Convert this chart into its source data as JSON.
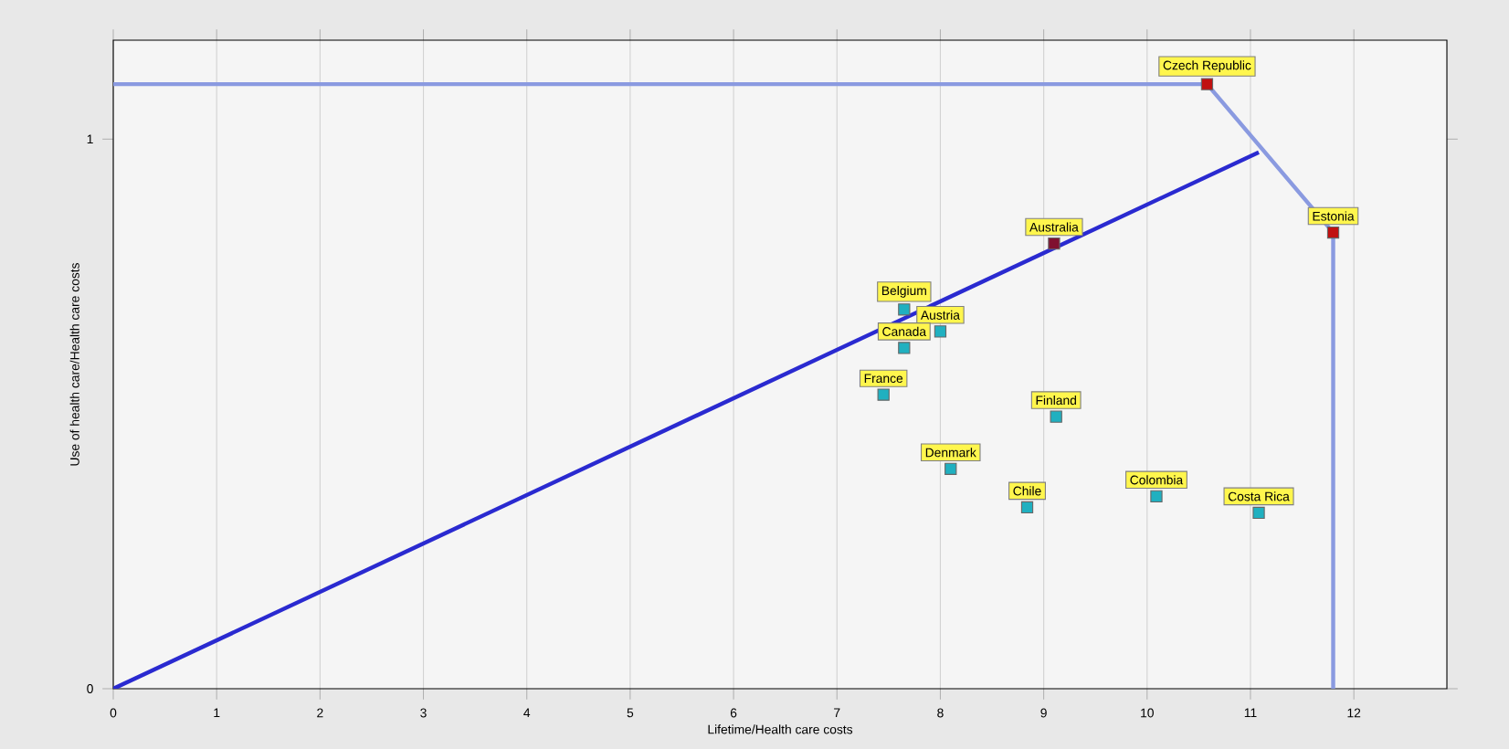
{
  "chart_data": {
    "type": "scatter",
    "xlabel": "Lifetime/Health care costs",
    "ylabel": "Use of health care/Health care costs",
    "xlim": [
      0,
      12.9
    ],
    "ylim": [
      0,
      1.18
    ],
    "xticks": [
      0,
      1,
      2,
      3,
      4,
      5,
      6,
      7,
      8,
      9,
      10,
      11,
      12
    ],
    "yticks": [
      0,
      1
    ],
    "grid": "x",
    "legend": false,
    "marker": "square",
    "series": [
      {
        "type": "line",
        "marker": "none",
        "color": "#8a9ae0",
        "x": [
          0,
          10.58,
          11.8,
          11.8
        ],
        "values": [
          1.1,
          1.1,
          0.83,
          0
        ]
      },
      {
        "type": "line",
        "marker": "none",
        "color": "#2a2ad0",
        "x": [
          0,
          11.08
        ],
        "values": [
          0,
          0.976
        ]
      },
      {
        "name": "Czech Republic",
        "color": "#c01010",
        "x": [
          10.58
        ],
        "values": [
          1.1
        ]
      },
      {
        "name": "Estonia",
        "color": "#c01010",
        "x": [
          11.8
        ],
        "values": [
          0.83
        ]
      },
      {
        "name": "Australia",
        "color": "#801030",
        "x": [
          9.1
        ],
        "values": [
          0.81
        ]
      },
      {
        "name": "Belgium",
        "color": "#20b0c0",
        "x": [
          7.65
        ],
        "values": [
          0.69
        ]
      },
      {
        "name": "Austria",
        "color": "#20b0c0",
        "x": [
          8.0
        ],
        "values": [
          0.65
        ]
      },
      {
        "name": "Canada",
        "color": "#20b0c0",
        "x": [
          7.65
        ],
        "values": [
          0.62
        ]
      },
      {
        "name": "France",
        "color": "#20b0c0",
        "x": [
          7.45
        ],
        "values": [
          0.535
        ]
      },
      {
        "name": "Finland",
        "color": "#20b0c0",
        "x": [
          9.12
        ],
        "values": [
          0.495
        ]
      },
      {
        "name": "Denmark",
        "color": "#20b0c0",
        "x": [
          8.1
        ],
        "values": [
          0.4
        ]
      },
      {
        "name": "Chile",
        "color": "#20b0c0",
        "x": [
          8.84
        ],
        "values": [
          0.33
        ]
      },
      {
        "name": "Colombia",
        "color": "#20b0c0",
        "x": [
          10.09
        ],
        "values": [
          0.35
        ]
      },
      {
        "name": "Costa Rica",
        "color": "#20b0c0",
        "x": [
          11.08
        ],
        "values": [
          0.32
        ]
      }
    ]
  }
}
